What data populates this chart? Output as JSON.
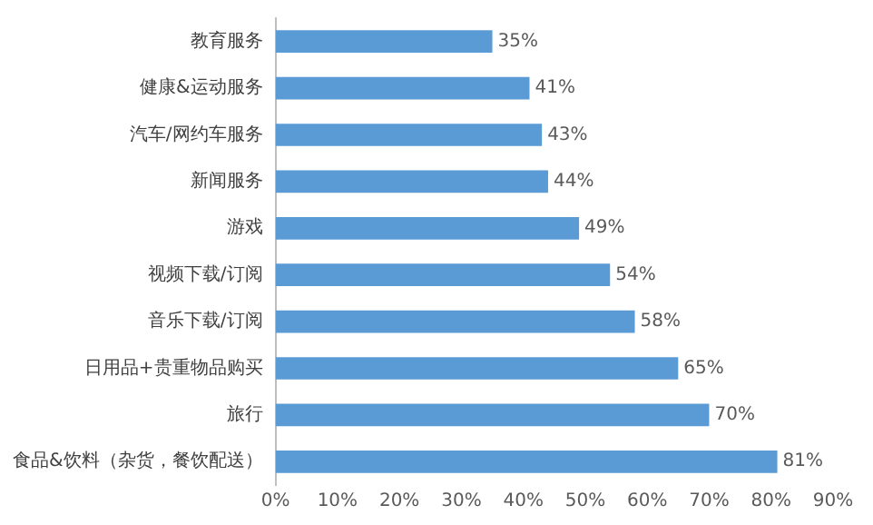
{
  "chart_data": {
    "type": "bar",
    "orientation": "horizontal",
    "categories": [
      "教育服务",
      "健康&运动服务",
      "汽车/网约车服务",
      "新闻服务",
      "游戏",
      "视频下载/订阅",
      "音乐下载/订阅",
      "日用品+贵重物品购买",
      "旅行",
      "食品&饮料（杂货，餐饮配送）"
    ],
    "values": [
      35,
      41,
      43,
      44,
      49,
      54,
      58,
      65,
      70,
      81
    ],
    "value_labels": [
      "35%",
      "41%",
      "43%",
      "44%",
      "49%",
      "54%",
      "58%",
      "65%",
      "70%",
      "81%"
    ],
    "color": "#5b9bd5",
    "xlim": [
      0,
      90
    ],
    "xticks": [
      {
        "value": 0,
        "label": "0%"
      },
      {
        "value": 10,
        "label": "10%"
      },
      {
        "value": 20,
        "label": "20%"
      },
      {
        "value": 30,
        "label": "30%"
      },
      {
        "value": 40,
        "label": "40%"
      },
      {
        "value": 50,
        "label": "50%"
      },
      {
        "value": 60,
        "label": "60%"
      },
      {
        "value": 70,
        "label": "70%"
      },
      {
        "value": 80,
        "label": "80%"
      },
      {
        "value": 90,
        "label": "90%"
      }
    ],
    "grid": false,
    "legend": false
  }
}
